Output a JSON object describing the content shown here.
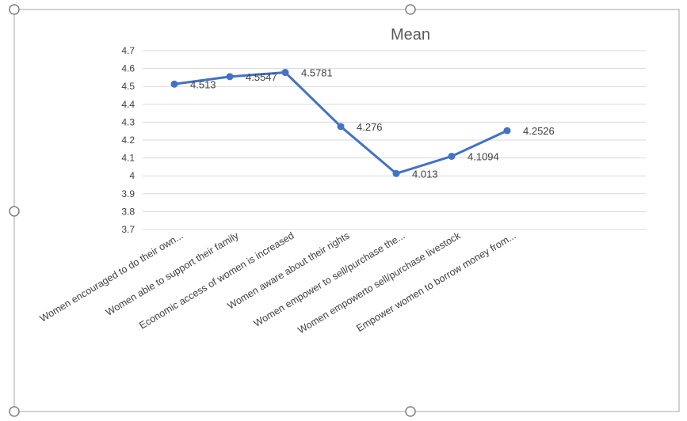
{
  "chart_data": {
    "type": "line",
    "title": "Mean",
    "xlabel": "",
    "ylabel": "",
    "categories": [
      "Women encouraged to do their own...",
      "Women able to support their family",
      "Economic access of women is increased",
      "Women aware about their rights",
      "Women empower to sell/purchase the...",
      "Women empowerto sell/purchase livestock",
      "Empower women to borrow money from..."
    ],
    "series": [
      {
        "values": [
          4.513,
          4.5547,
          4.5781,
          4.276,
          4.013,
          4.1094,
          4.2526
        ],
        "labels": [
          "4.513",
          "4.5547",
          "4.5781",
          "4.276",
          "4.013",
          "4.1094",
          "4.2526"
        ]
      }
    ],
    "yticks": [
      "4.7",
      "4.6",
      "4.5",
      "4.4",
      "4.3",
      "4.2",
      "4.1",
      "4",
      "3.9",
      "3.8",
      "3.7"
    ],
    "ylim": [
      3.7,
      4.7
    ],
    "grid": true,
    "legend": "none",
    "colors": {
      "line": "#4472c4",
      "grid": "#d9d9d9",
      "text": "#404040",
      "frame": "#a6a6a6"
    }
  }
}
